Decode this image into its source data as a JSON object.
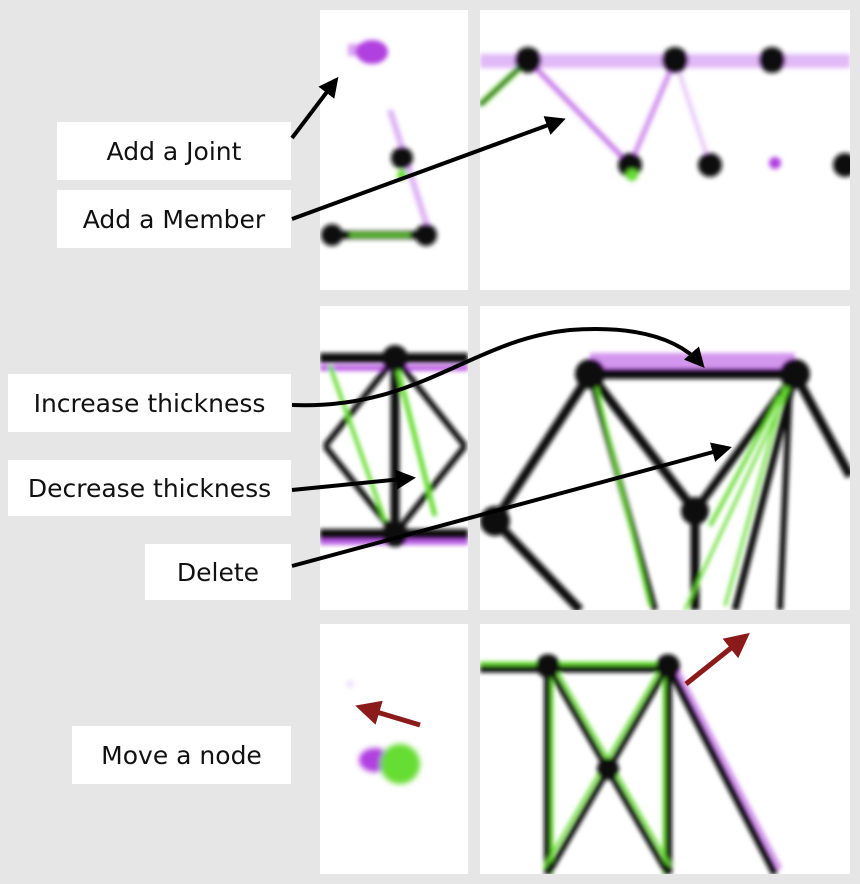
{
  "labels": {
    "add_joint": "Add a Joint",
    "add_member": "Add a Member",
    "increase_thickness": "Increase thickness",
    "decrease_thickness": "Decrease thickness",
    "delete": "Delete",
    "move_node": "Move a node"
  },
  "colors": {
    "background": "#e6e6e6",
    "panel": "#ffffff",
    "member": "#111111",
    "added": "#b040e0",
    "removed": "#66dd33",
    "move_arrow": "#8b1a1a",
    "arrow": "#000000"
  }
}
